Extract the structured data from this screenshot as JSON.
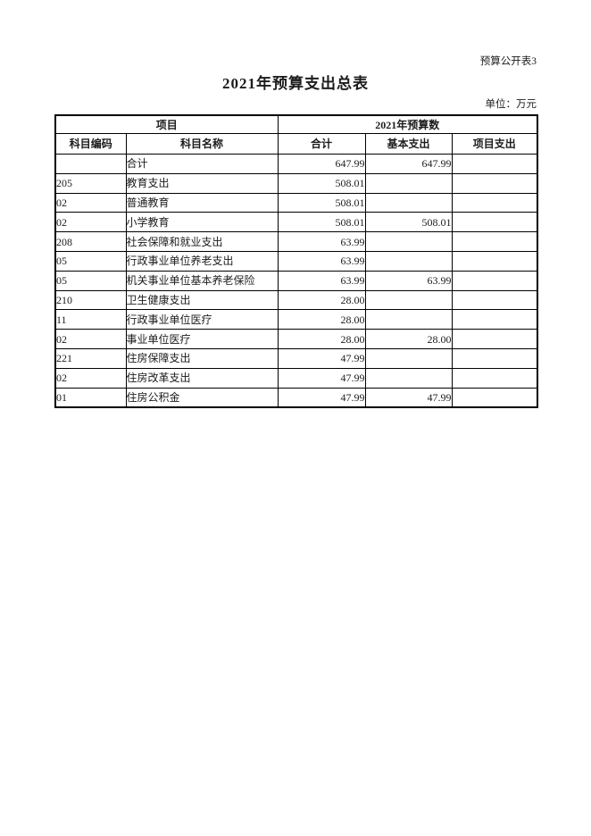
{
  "page": {
    "note_top_right": "预算公开表3",
    "title": "2021年预算支出总表",
    "unit_label": "单位：万元"
  },
  "table": {
    "header": {
      "group_item": "项目",
      "group_budget": "2021年预算数",
      "col_code": "科目编码",
      "col_name": "科目名称",
      "col_total": "合计",
      "col_basic": "基本支出",
      "col_project": "项目支出"
    },
    "rows": [
      {
        "code": "",
        "name": "合计",
        "indent": 0,
        "total": "647.99",
        "basic": "647.99",
        "project": ""
      },
      {
        "code": "205",
        "name": "教育支出",
        "indent": 0,
        "total": "508.01",
        "basic": "",
        "project": ""
      },
      {
        "code": "02",
        "name": "普通教育",
        "indent": 1,
        "total": "508.01",
        "basic": "",
        "project": ""
      },
      {
        "code": "02",
        "name": "小学教育",
        "indent": 2,
        "total": "508.01",
        "basic": "508.01",
        "project": ""
      },
      {
        "code": "208",
        "name": "社会保障和就业支出",
        "indent": 0,
        "total": "63.99",
        "basic": "",
        "project": ""
      },
      {
        "code": "05",
        "name": "行政事业单位养老支出",
        "indent": 1,
        "total": "63.99",
        "basic": "",
        "project": ""
      },
      {
        "code": "05",
        "name": "机关事业单位基本养老保险",
        "indent": 2,
        "total": "63.99",
        "basic": "63.99",
        "project": ""
      },
      {
        "code": "210",
        "name": "卫生健康支出",
        "indent": 0,
        "total": "28.00",
        "basic": "",
        "project": ""
      },
      {
        "code": "11",
        "name": "行政事业单位医疗",
        "indent": 1,
        "total": "28.00",
        "basic": "",
        "project": ""
      },
      {
        "code": "02",
        "name": "事业单位医疗",
        "indent": 2,
        "total": "28.00",
        "basic": "28.00",
        "project": ""
      },
      {
        "code": "221",
        "name": "住房保障支出",
        "indent": 0,
        "total": "47.99",
        "basic": "",
        "project": ""
      },
      {
        "code": "02",
        "name": "住房改革支出",
        "indent": 1,
        "total": "47.99",
        "basic": "",
        "project": ""
      },
      {
        "code": "01",
        "name": "住房公积金",
        "indent": 2,
        "total": "47.99",
        "basic": "47.99",
        "project": ""
      }
    ]
  }
}
